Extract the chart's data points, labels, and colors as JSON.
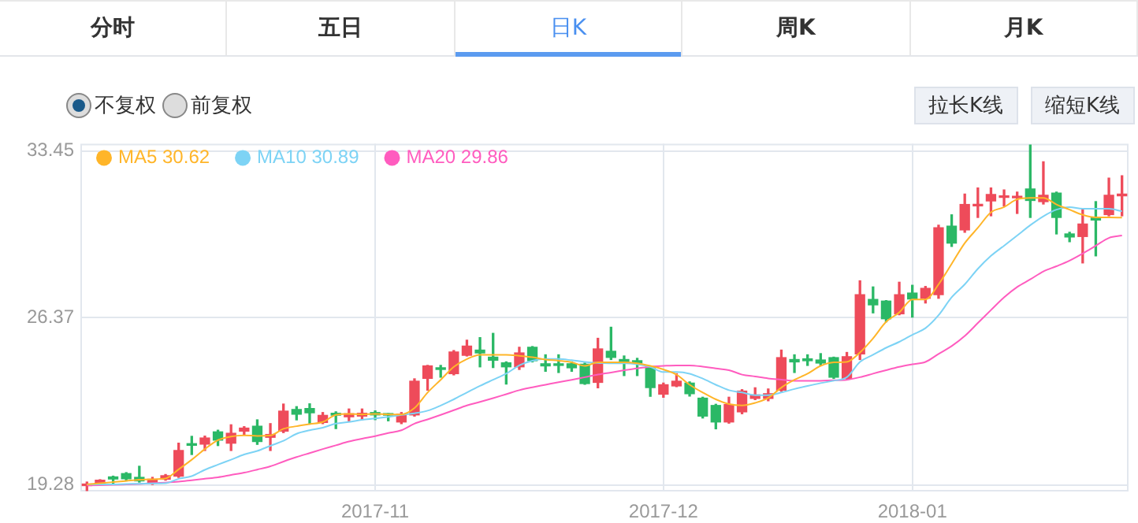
{
  "chart_data": {
    "type": "candlestick",
    "categories": [
      null,
      null,
      null,
      null,
      null,
      null,
      null,
      null,
      null,
      null,
      null,
      null,
      null,
      null,
      null,
      null,
      null,
      null,
      null,
      null,
      null,
      null,
      "2017-11",
      null,
      null,
      null,
      null,
      null,
      null,
      null,
      null,
      null,
      null,
      null,
      null,
      null,
      null,
      null,
      null,
      null,
      null,
      null,
      null,
      null,
      "2017-12",
      null,
      null,
      null,
      null,
      null,
      null,
      null,
      null,
      null,
      null,
      null,
      null,
      null,
      null,
      null,
      null,
      null,
      null,
      "2018-01",
      null,
      null,
      null,
      null,
      null,
      null,
      null,
      null,
      null,
      null,
      null,
      null,
      null,
      null,
      null,
      null
    ],
    "ohlc": [
      [
        19.25,
        19.4,
        19.04,
        19.3
      ],
      [
        19.33,
        19.5,
        19.3,
        19.48
      ],
      [
        19.62,
        19.65,
        19.35,
        19.53
      ],
      [
        19.76,
        19.8,
        19.45,
        19.54
      ],
      [
        19.6,
        20.07,
        19.4,
        19.45
      ],
      [
        19.38,
        19.6,
        19.3,
        19.52
      ],
      [
        19.52,
        19.72,
        19.48,
        19.67
      ],
      [
        19.65,
        21.05,
        19.6,
        20.74
      ],
      [
        21.03,
        21.34,
        20.57,
        20.96
      ],
      [
        21.01,
        21.35,
        20.74,
        21.27
      ],
      [
        21.53,
        21.6,
        20.95,
        21.18
      ],
      [
        21.05,
        21.83,
        20.74,
        21.47
      ],
      [
        21.56,
        21.75,
        21.4,
        21.69
      ],
      [
        21.77,
        22.04,
        21.0,
        21.12
      ],
      [
        21.3,
        21.88,
        20.74,
        21.42
      ],
      [
        21.56,
        22.71,
        21.5,
        22.41
      ],
      [
        22.48,
        22.6,
        22.04,
        22.28
      ],
      [
        22.52,
        22.72,
        21.9,
        22.34
      ],
      [
        21.93,
        22.35,
        21.88,
        22.23
      ],
      [
        22.32,
        22.38,
        21.67,
        22.24
      ],
      [
        22.17,
        22.5,
        22.0,
        22.3
      ],
      [
        22.2,
        22.5,
        22.05,
        22.32
      ],
      [
        22.35,
        22.42,
        22.05,
        22.25
      ],
      [
        22.28,
        22.3,
        22.0,
        22.24
      ],
      [
        21.95,
        22.35,
        21.88,
        22.28
      ],
      [
        22.25,
        23.78,
        22.2,
        23.68
      ],
      [
        23.8,
        24.35,
        23.3,
        24.33
      ],
      [
        24.25,
        24.35,
        23.85,
        24.18
      ],
      [
        24.0,
        24.98,
        23.95,
        24.92
      ],
      [
        24.78,
        25.42,
        24.75,
        25.17
      ],
      [
        25.0,
        25.53,
        24.29,
        24.88
      ],
      [
        24.7,
        25.71,
        24.26,
        24.57
      ],
      [
        24.46,
        24.5,
        23.56,
        24.29
      ],
      [
        24.29,
        25.12,
        24.18,
        24.88
      ],
      [
        25.12,
        25.15,
        24.5,
        24.55
      ],
      [
        24.42,
        24.8,
        24.1,
        24.33
      ],
      [
        24.42,
        24.8,
        24.05,
        24.35
      ],
      [
        24.42,
        24.5,
        24.1,
        24.25
      ],
      [
        24.4,
        24.45,
        23.55,
        23.58
      ],
      [
        23.63,
        25.5,
        23.4,
        25.05
      ],
      [
        24.95,
        25.97,
        24.6,
        24.69
      ],
      [
        24.6,
        24.75,
        23.92,
        24.5
      ],
      [
        24.55,
        24.65,
        23.92,
        24.45
      ],
      [
        24.28,
        24.3,
        23.04,
        23.41
      ],
      [
        23.13,
        23.6,
        23.0,
        23.53
      ],
      [
        23.48,
        24.0,
        23.45,
        23.68
      ],
      [
        23.6,
        23.65,
        23.05,
        23.15
      ],
      [
        22.96,
        23.0,
        22.12,
        22.2
      ],
      [
        22.65,
        22.7,
        21.66,
        21.95
      ],
      [
        21.95,
        23.0,
        21.9,
        22.69
      ],
      [
        22.38,
        23.32,
        22.3,
        23.26
      ],
      [
        22.95,
        23.4,
        22.9,
        23.1
      ],
      [
        22.95,
        23.35,
        22.85,
        23.15
      ],
      [
        23.3,
        25.0,
        23.25,
        24.68
      ],
      [
        24.6,
        24.8,
        24.05,
        24.5
      ],
      [
        24.63,
        24.8,
        24.35,
        24.55
      ],
      [
        24.58,
        24.85,
        24.35,
        24.45
      ],
      [
        24.68,
        24.7,
        23.8,
        23.85
      ],
      [
        23.8,
        24.9,
        23.75,
        24.72
      ],
      [
        24.84,
        27.94,
        24.6,
        27.35
      ],
      [
        27.15,
        27.68,
        26.58,
        26.92
      ],
      [
        27.08,
        27.1,
        26.2,
        26.33
      ],
      [
        26.54,
        27.88,
        26.5,
        27.35
      ],
      [
        27.42,
        27.75,
        26.4,
        27.17
      ],
      [
        27.2,
        27.7,
        27.0,
        27.62
      ],
      [
        27.35,
        30.3,
        27.2,
        30.19
      ],
      [
        30.26,
        30.74,
        29.4,
        29.54
      ],
      [
        30.1,
        31.62,
        30.0,
        31.18
      ],
      [
        31.12,
        31.88,
        30.63,
        31.17
      ],
      [
        31.33,
        31.88,
        30.7,
        31.6
      ],
      [
        31.48,
        31.8,
        31.12,
        31.52
      ],
      [
        31.46,
        31.7,
        30.8,
        31.5
      ],
      [
        31.84,
        33.7,
        30.63,
        31.35
      ],
      [
        31.3,
        32.99,
        31.2,
        31.57
      ],
      [
        31.66,
        31.7,
        29.93,
        30.63
      ],
      [
        29.93,
        30.0,
        29.6,
        29.8
      ],
      [
        29.82,
        31.0,
        28.7,
        30.35
      ],
      [
        30.63,
        31.3,
        29.0,
        30.52
      ],
      [
        30.75,
        32.3,
        30.7,
        31.57
      ],
      [
        31.55,
        32.4,
        30.7,
        31.6
      ]
    ],
    "colors": [
      "#ee4b5a",
      "#ee4b5a",
      "#2bb866",
      "#2bb866",
      "#2bb866",
      "#ee4b5a",
      "#ee4b5a",
      "#ee4b5a",
      "#2bb866",
      "#ee4b5a",
      "#2bb866",
      "#ee4b5a",
      "#ee4b5a",
      "#2bb866",
      "#ee4b5a",
      "#ee4b5a",
      "#2bb866",
      "#2bb866",
      "#ee4b5a",
      "#2bb866",
      "#ee4b5a",
      "#ee4b5a",
      "#2bb866",
      "#2bb866",
      "#ee4b5a",
      "#ee4b5a",
      "#ee4b5a",
      "#2bb866",
      "#ee4b5a",
      "#ee4b5a",
      "#2bb866",
      "#2bb866",
      "#2bb866",
      "#ee4b5a",
      "#2bb866",
      "#2bb866",
      "#2bb866",
      "#2bb866",
      "#2bb866",
      "#ee4b5a",
      "#2bb866",
      "#2bb866",
      "#2bb866",
      "#2bb866",
      "#ee4b5a",
      "#ee4b5a",
      "#2bb866",
      "#2bb866",
      "#2bb866",
      "#ee4b5a",
      "#ee4b5a",
      "#ee4b5a",
      "#ee4b5a",
      "#ee4b5a",
      "#2bb866",
      "#2bb866",
      "#2bb866",
      "#2bb866",
      "#ee4b5a",
      "#ee4b5a",
      "#2bb866",
      "#2bb866",
      "#ee4b5a",
      "#2bb866",
      "#ee4b5a",
      "#ee4b5a",
      "#2bb866",
      "#ee4b5a",
      "#ee4b5a",
      "#ee4b5a",
      "#ee4b5a",
      "#ee4b5a",
      "#2bb866",
      "#ee4b5a",
      "#2bb866",
      "#2bb866",
      "#ee4b5a",
      "#2bb866",
      "#ee4b5a",
      "#ee4b5a"
    ],
    "series": [
      {
        "type": "line",
        "name": "MA5 30.62",
        "color": "#ffb529",
        "values": [
          19.3,
          19.35,
          19.4,
          19.45,
          19.5,
          19.52,
          19.55,
          19.94,
          20.35,
          20.8,
          21.18,
          21.33,
          21.38,
          21.36,
          21.38,
          21.66,
          21.77,
          21.86,
          21.95,
          22.25,
          22.29,
          22.27,
          22.29,
          22.27,
          22.27,
          22.54,
          23.2,
          23.74,
          24.29,
          24.62,
          24.8,
          24.8,
          24.8,
          24.76,
          24.7,
          24.6,
          24.55,
          24.48,
          24.33,
          24.48,
          24.48,
          24.48,
          24.44,
          24.33,
          24.18,
          23.96,
          23.53,
          23.2,
          22.91,
          22.71,
          22.65,
          22.76,
          22.97,
          23.41,
          23.74,
          24.0,
          24.33,
          24.48,
          24.5,
          24.9,
          25.5,
          26.2,
          26.6,
          27.15,
          27.15,
          27.79,
          28.66,
          29.54,
          30.19,
          30.85,
          31.07,
          31.4,
          31.46,
          31.46,
          31.18,
          30.96,
          30.74,
          30.63,
          30.63,
          30.62
        ]
      },
      {
        "type": "line",
        "name": "MA10 30.89",
        "color": "#7dd3f5",
        "values": [
          19.3,
          19.3,
          19.3,
          19.32,
          19.33,
          19.34,
          19.35,
          19.54,
          19.65,
          19.92,
          20.14,
          20.35,
          20.57,
          20.72,
          20.94,
          21.15,
          21.45,
          21.6,
          21.71,
          21.88,
          21.95,
          22.04,
          22.1,
          22.17,
          22.25,
          22.32,
          22.43,
          22.65,
          22.91,
          23.2,
          23.48,
          23.74,
          24.0,
          24.35,
          24.55,
          24.62,
          24.62,
          24.57,
          24.5,
          24.46,
          24.44,
          24.44,
          24.4,
          24.29,
          24.07,
          24.07,
          24.0,
          23.79,
          23.53,
          23.3,
          23.2,
          23.09,
          23.09,
          23.2,
          23.35,
          23.48,
          23.6,
          23.7,
          23.85,
          24.5,
          24.8,
          25.1,
          25.35,
          25.65,
          25.93,
          26.48,
          27.24,
          27.79,
          28.45,
          29.0,
          29.43,
          29.86,
          30.3,
          30.68,
          30.96,
          31.07,
          31.0,
          31.0,
          31.0,
          30.89
        ]
      },
      {
        "type": "line",
        "name": "MA20 29.86",
        "color": "#ff5cbf",
        "values": [
          19.26,
          19.27,
          19.28,
          19.3,
          19.32,
          19.35,
          19.38,
          19.42,
          19.48,
          19.54,
          19.6,
          19.7,
          19.8,
          19.93,
          20.07,
          20.27,
          20.46,
          20.63,
          20.8,
          20.96,
          21.12,
          21.24,
          21.35,
          21.48,
          21.6,
          21.88,
          22.06,
          22.25,
          22.45,
          22.65,
          22.8,
          22.96,
          23.13,
          23.3,
          23.42,
          23.53,
          23.64,
          23.74,
          23.85,
          23.96,
          24.05,
          24.15,
          24.22,
          24.3,
          24.33,
          24.35,
          24.35,
          24.3,
          24.22,
          24.15,
          23.96,
          23.88,
          23.8,
          23.75,
          23.7,
          23.7,
          23.7,
          23.72,
          23.74,
          23.85,
          24.0,
          24.15,
          24.29,
          24.4,
          24.5,
          24.84,
          25.17,
          25.6,
          26.15,
          26.7,
          27.24,
          27.68,
          28.0,
          28.34,
          28.56,
          28.8,
          29.1,
          29.43,
          29.76,
          29.86
        ]
      }
    ],
    "ylim": [
      19.0,
      33.76
    ],
    "yticks": [
      19.28,
      26.37,
      33.45
    ],
    "grid": true,
    "legend": "top left",
    "annotations": [
      "分时",
      "五日",
      "日K",
      "周K",
      "月K",
      "不复权",
      "前复权",
      "拉长K线",
      "缩短K线"
    ]
  }
}
